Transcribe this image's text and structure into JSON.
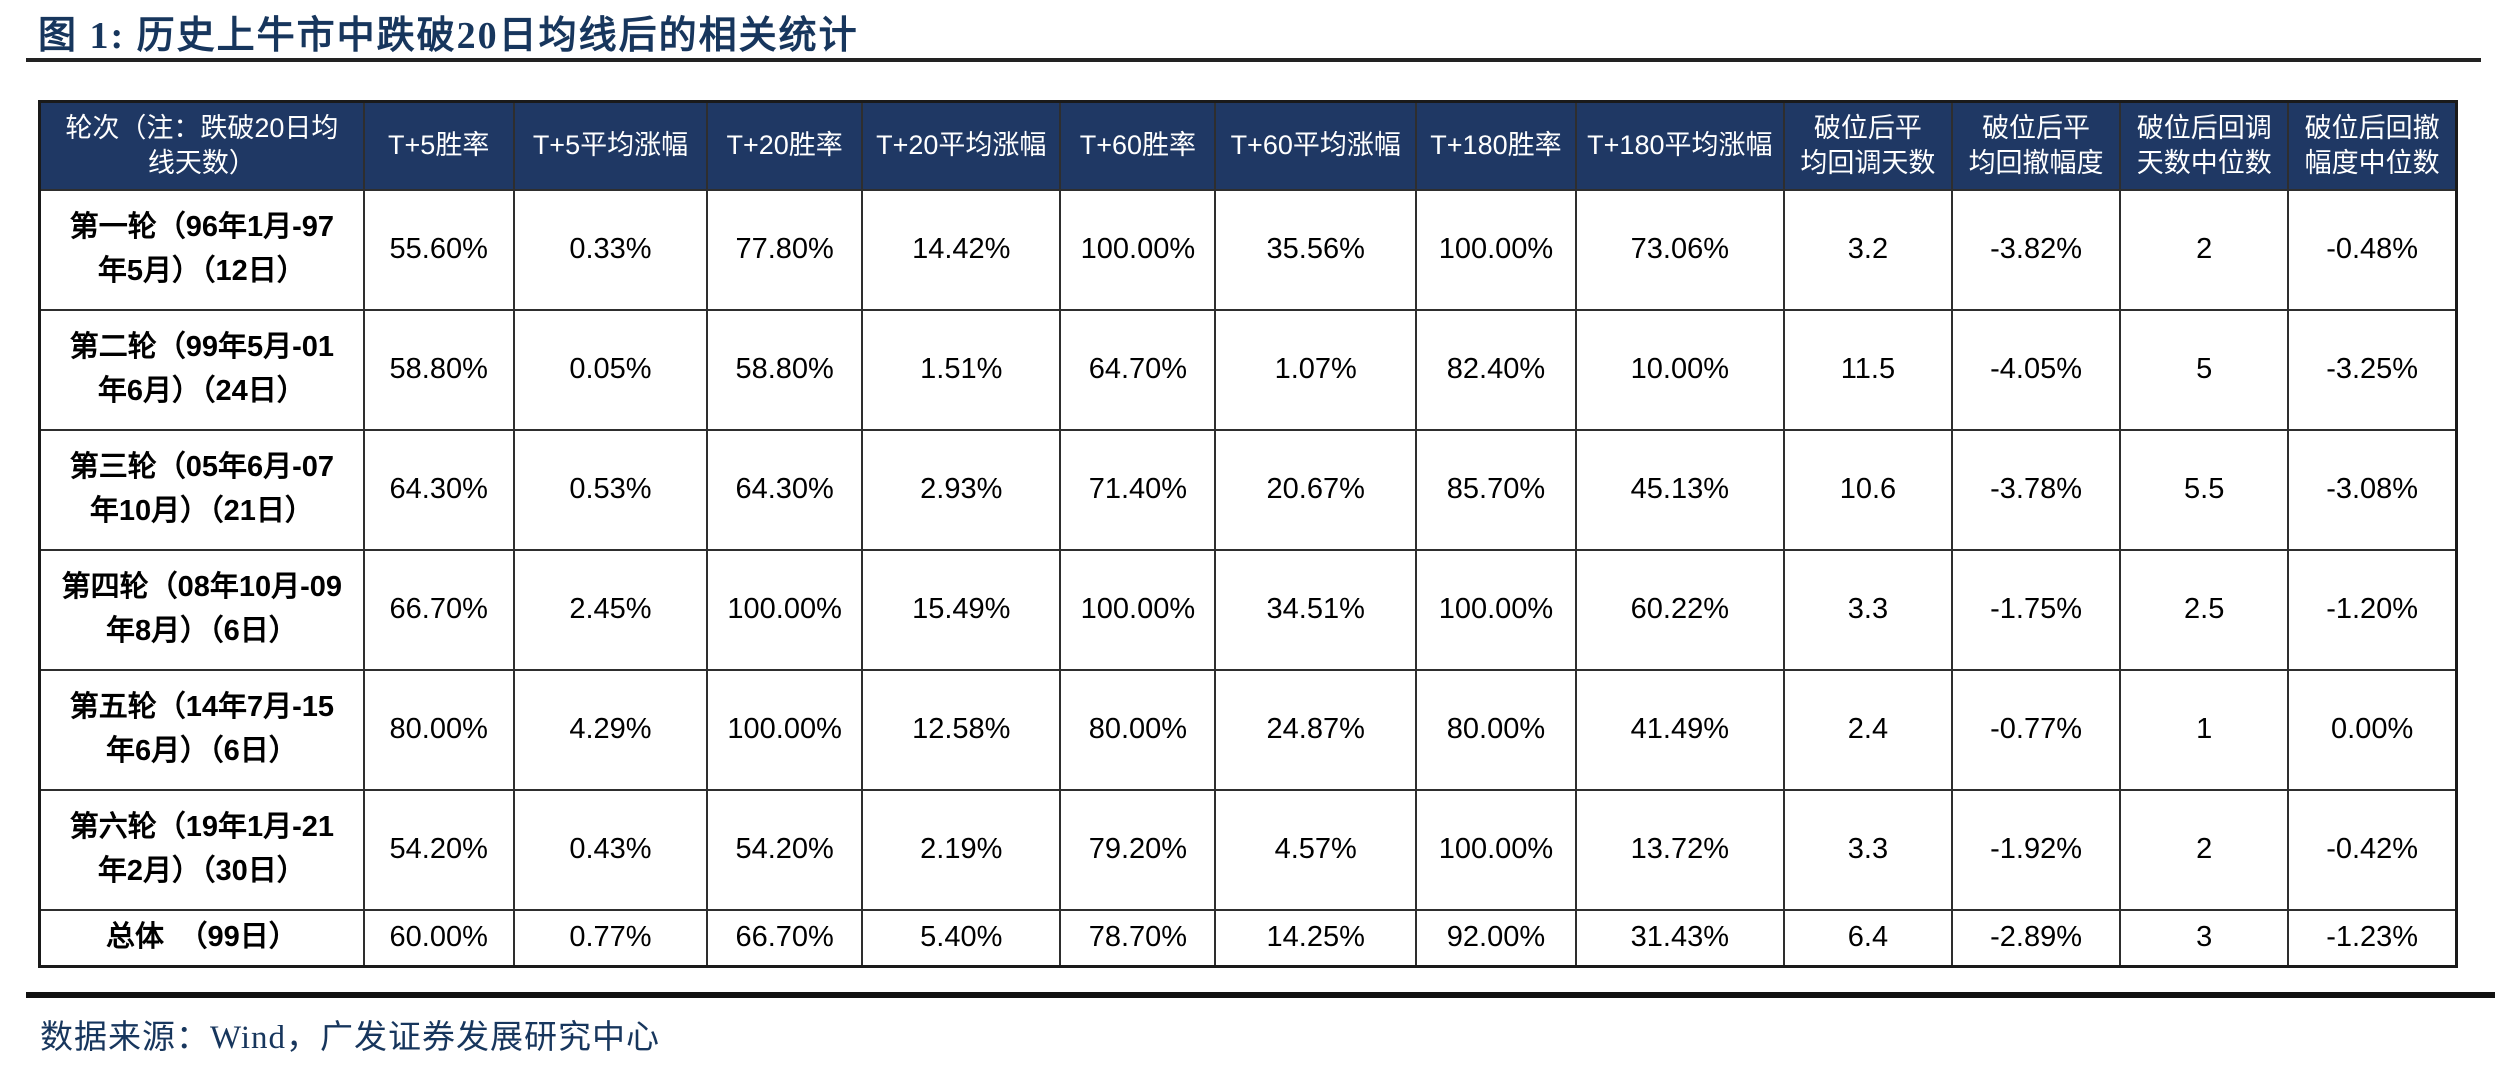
{
  "title": "图 1: 历史上牛市中跌破20日均线后的相关统计",
  "colors": {
    "header_bg": "#1F3864",
    "accent_text": "#17365D",
    "rule": "#111111",
    "body_text": "#000000"
  },
  "table": {
    "columns": [
      {
        "label": "轮次（注：跌破20日均\n线天数）"
      },
      {
        "label": "T+5胜率"
      },
      {
        "label": "T+5平均涨幅"
      },
      {
        "label": "T+20胜率"
      },
      {
        "label": "T+20平均涨幅"
      },
      {
        "label": "T+60胜率"
      },
      {
        "label": "T+60平均涨幅"
      },
      {
        "label": "T+180胜率"
      },
      {
        "label": "T+180平均涨幅"
      },
      {
        "label": "破位后平\n均回调天数"
      },
      {
        "label": "破位后平\n均回撤幅度"
      },
      {
        "label": "破位后回调\n天数中位数"
      },
      {
        "label": "破位后回撤\n幅度中位数"
      }
    ],
    "rows": [
      {
        "label": "第一轮（96年1月-97\n年5月）（12日）",
        "values": [
          "55.60%",
          "0.33%",
          "77.80%",
          "14.42%",
          "100.00%",
          "35.56%",
          "100.00%",
          "73.06%",
          "3.2",
          "-3.82%",
          "2",
          "-0.48%"
        ]
      },
      {
        "label": "第二轮（99年5月-01\n年6月）（24日）",
        "values": [
          "58.80%",
          "0.05%",
          "58.80%",
          "1.51%",
          "64.70%",
          "1.07%",
          "82.40%",
          "10.00%",
          "11.5",
          "-4.05%",
          "5",
          "-3.25%"
        ]
      },
      {
        "label": "第三轮（05年6月-07\n年10月）（21日）",
        "values": [
          "64.30%",
          "0.53%",
          "64.30%",
          "2.93%",
          "71.40%",
          "20.67%",
          "85.70%",
          "45.13%",
          "10.6",
          "-3.78%",
          "5.5",
          "-3.08%"
        ]
      },
      {
        "label": "第四轮（08年10月-09\n年8月）（6日）",
        "values": [
          "66.70%",
          "2.45%",
          "100.00%",
          "15.49%",
          "100.00%",
          "34.51%",
          "100.00%",
          "60.22%",
          "3.3",
          "-1.75%",
          "2.5",
          "-1.20%"
        ]
      },
      {
        "label": "第五轮（14年7月-15\n年6月）（6日）",
        "values": [
          "80.00%",
          "4.29%",
          "100.00%",
          "12.58%",
          "80.00%",
          "24.87%",
          "80.00%",
          "41.49%",
          "2.4",
          "-0.77%",
          "1",
          "0.00%"
        ]
      },
      {
        "label": "第六轮（19年1月-21\n年2月）（30日）",
        "values": [
          "54.20%",
          "0.43%",
          "54.20%",
          "2.19%",
          "79.20%",
          "4.57%",
          "100.00%",
          "13.72%",
          "3.3",
          "-1.92%",
          "2",
          "-0.42%"
        ]
      },
      {
        "label": "总体　（99日）",
        "is_total": true,
        "values": [
          "60.00%",
          "0.77%",
          "66.70%",
          "5.40%",
          "78.70%",
          "14.25%",
          "92.00%",
          "31.43%",
          "6.4",
          "-2.89%",
          "3",
          "-1.23%"
        ]
      }
    ]
  },
  "footer": {
    "source": "数据来源：Wind，广发证券发展研究中心"
  }
}
